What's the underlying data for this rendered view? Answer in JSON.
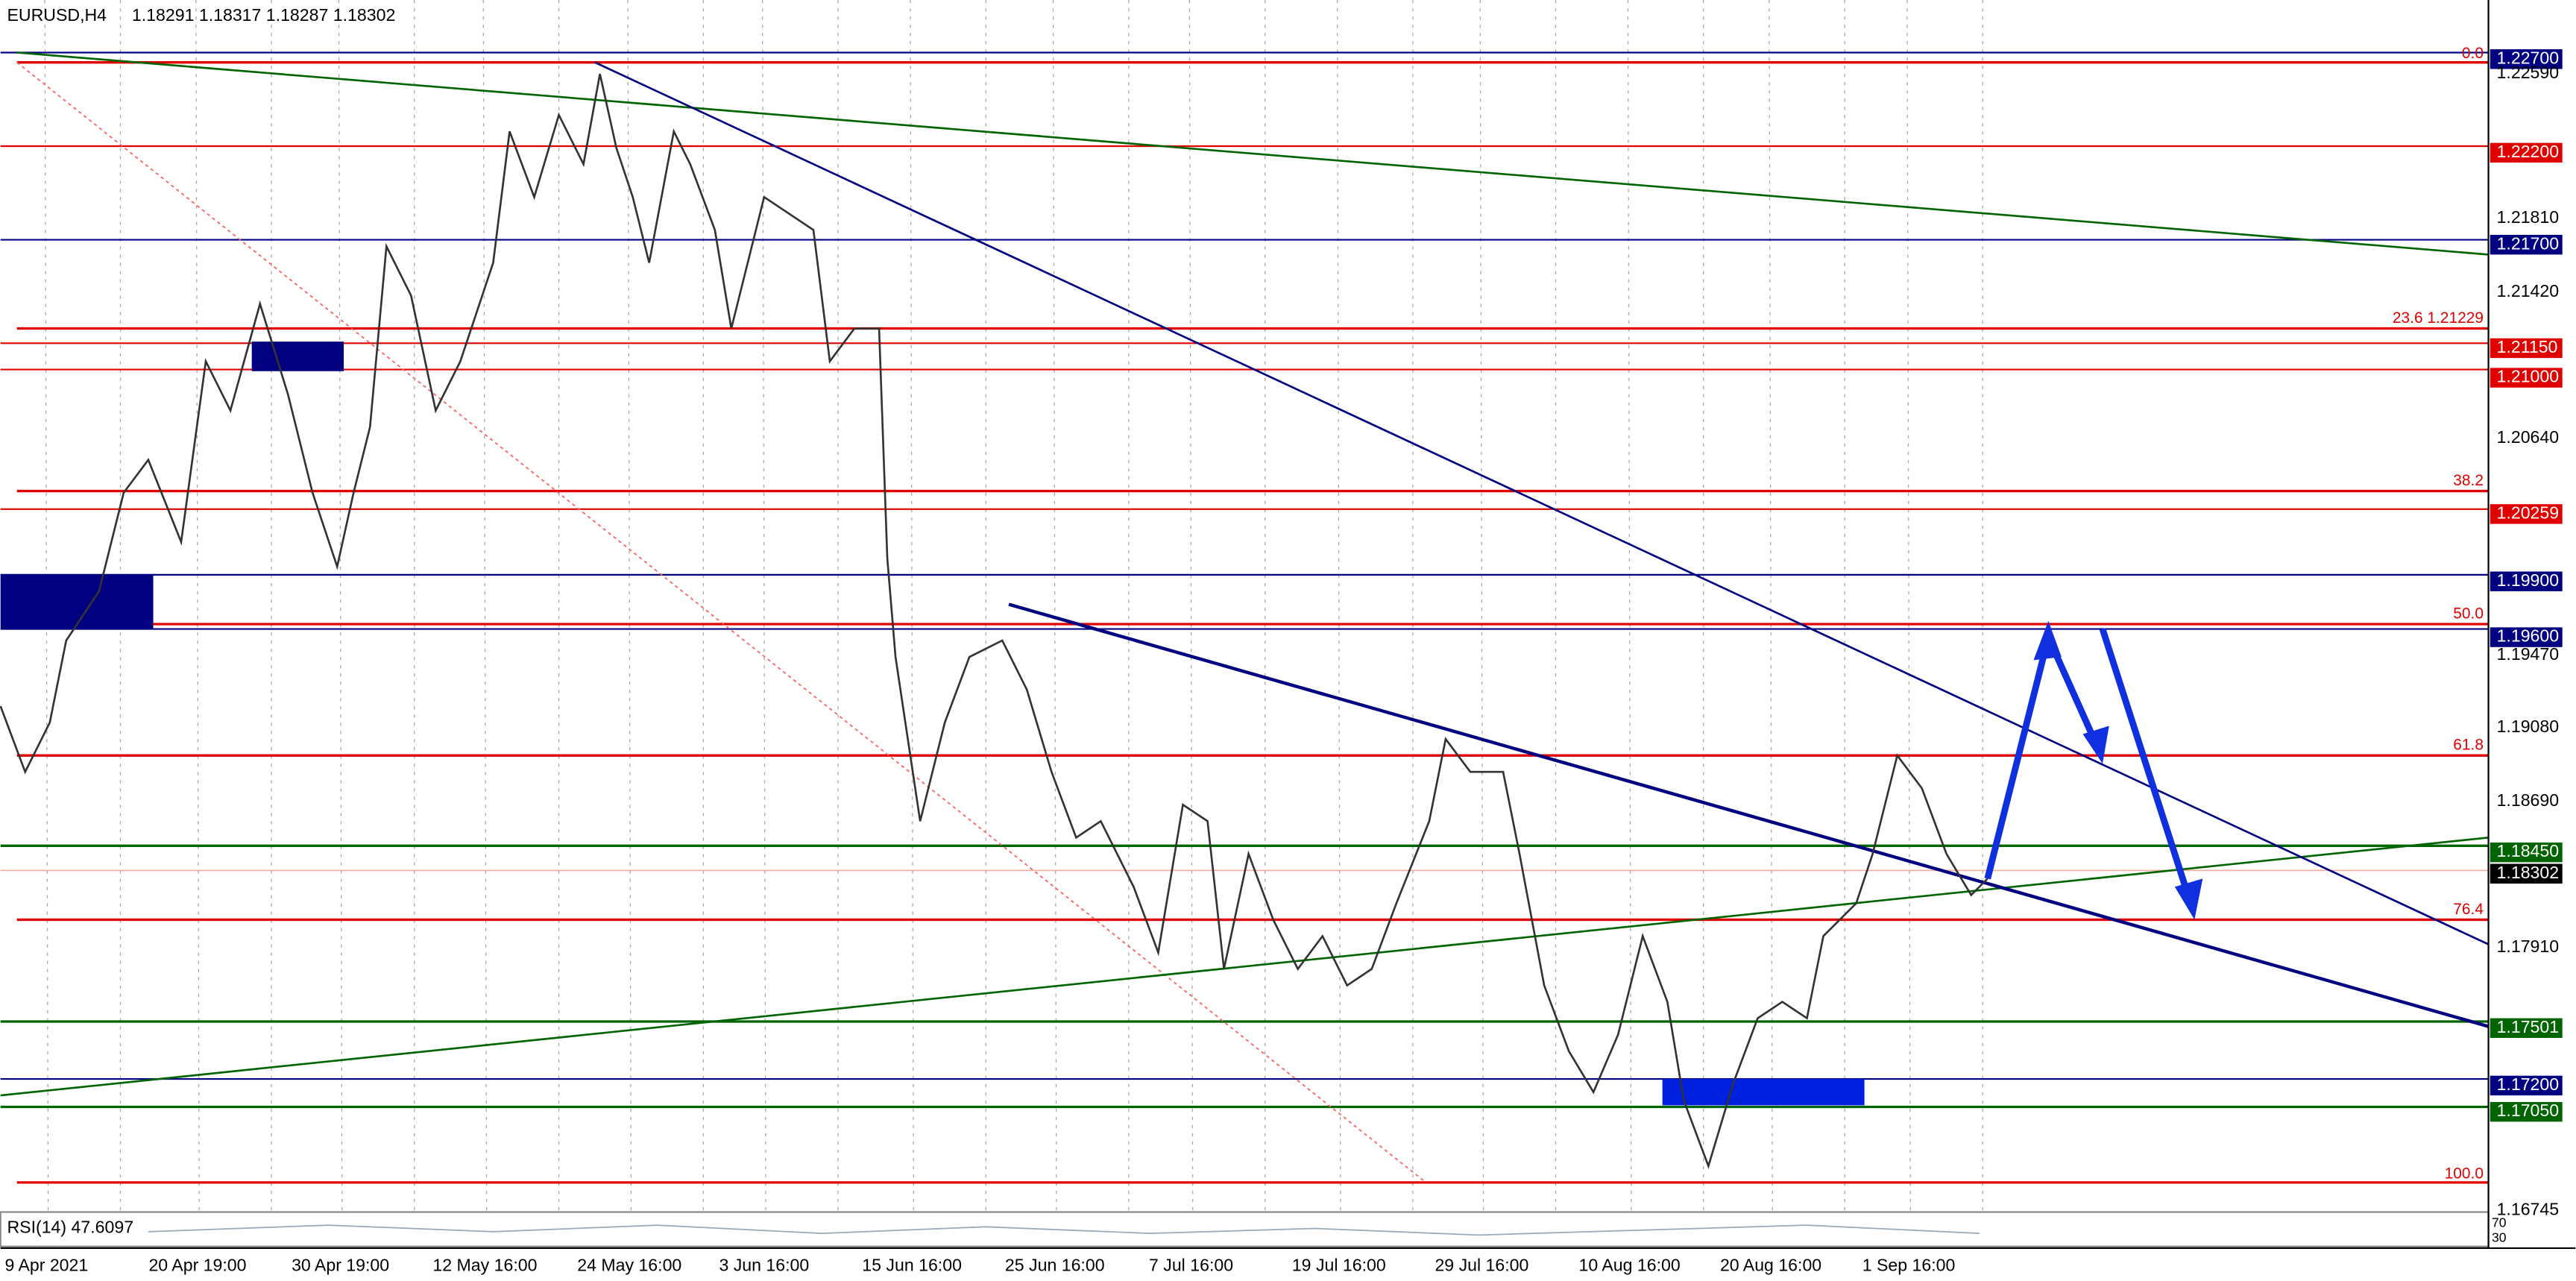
{
  "header": {
    "title": "EURUSD,H4",
    "quote": "1.18291 1.18317 1.18287 1.18302"
  },
  "price_axis": {
    "labels": [
      "1.22700",
      "1.22590",
      "1.22200",
      "1.21810",
      "1.21700",
      "1.21420",
      "1.21150",
      "1.21000",
      "1.20640",
      "1.20259",
      "1.19900",
      "1.19600",
      "1.19470",
      "1.19080",
      "1.18690",
      "1.18450",
      "1.18302",
      "1.17910",
      "1.17501",
      "1.17200",
      "1.17050",
      "1.16745"
    ]
  },
  "time_axis": {
    "labels": [
      "9 Apr 2021",
      "20 Apr 19:00",
      "30 Apr 19:00",
      "12 May 16:00",
      "24 May 16:00",
      "3 Jun 16:00",
      "15 Jun 16:00",
      "25 Jun 16:00",
      "7 Jul 16:00",
      "19 Jul 16:00",
      "29 Jul 16:00",
      "10 Aug 16:00",
      "20 Aug 16:00",
      "1 Sep 16:00"
    ]
  },
  "fibonacci": {
    "labels": [
      "0.0",
      "23.6 1.21229",
      "38.2",
      "50.0",
      "61.8",
      "76.4",
      "100.0"
    ]
  },
  "indicator": {
    "label": "RSI(14) 47.6097",
    "levels": [
      "70",
      "30"
    ]
  }
}
